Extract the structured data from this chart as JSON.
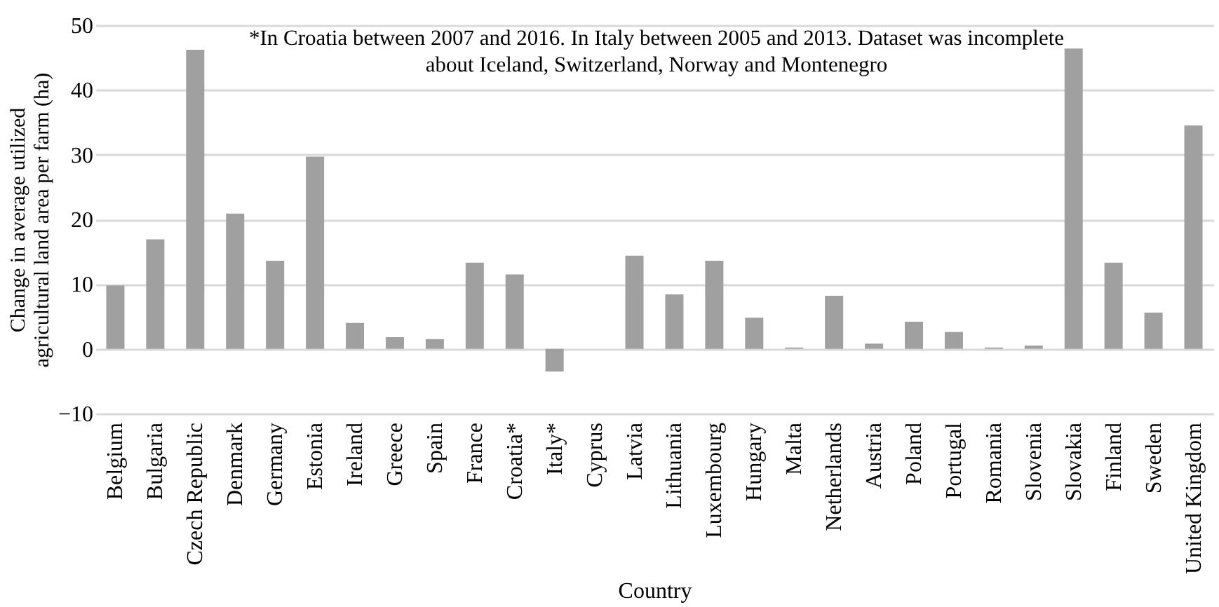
{
  "chart_data": {
    "type": "bar",
    "categories": [
      "Belgium",
      "Bulgaria",
      "Czech Republic",
      "Denmark",
      "Germany",
      "Estonia",
      "Ireland",
      "Greece",
      "Spain",
      "France",
      "Croatia*",
      "Italy*",
      "Cyprus",
      "Latvia",
      "Lithuania",
      "Luxembourg",
      "Hungary",
      "Malta",
      "Netherlands",
      "Austria",
      "Poland",
      "Portugal",
      "Romania",
      "Slovenia",
      "Slovakia",
      "Finland",
      "Sweden",
      "United Kingdom"
    ],
    "values": [
      9.8,
      16.9,
      46.2,
      20.9,
      13.6,
      29.7,
      4.0,
      1.8,
      1.5,
      13.3,
      11.5,
      -3.5,
      0,
      14.4,
      8.4,
      13.6,
      4.8,
      0.2,
      8.2,
      0.8,
      4.2,
      2.6,
      0.2,
      0.5,
      46.4,
      13.3,
      5.6,
      34.5
    ],
    "color": "#a0a0a0",
    "xlabel": "Country",
    "ylabel": "Change in average utilized agricultural land area per farm (ha)",
    "ylim": [
      -10,
      50
    ],
    "yticks": [
      -10,
      0,
      10,
      20,
      30,
      40,
      50
    ],
    "grid": "y",
    "annotations": [
      "*In Croatia between 2007 and 2016. In Italy between 2005 and 2013. Dataset was incomplete",
      "about Iceland, Switzerland, Norway and Montenegro"
    ]
  }
}
